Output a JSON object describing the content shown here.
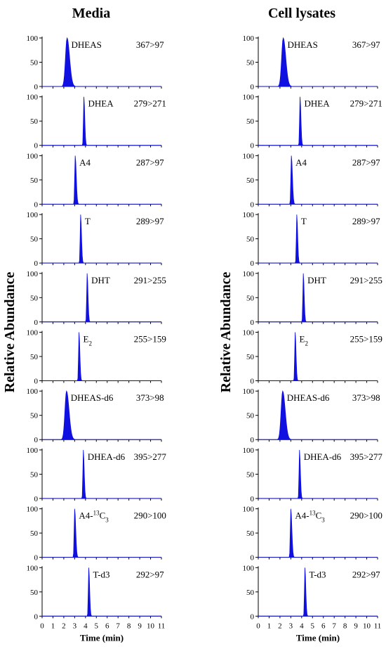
{
  "chart_data": {
    "type": "area",
    "ylabel": "Relative Abundance",
    "xlabel": "Time (min)",
    "xlim": [
      0,
      11
    ],
    "ylim": [
      0,
      100
    ],
    "xticks": [
      "0",
      "1",
      "2",
      "3",
      "4",
      "5",
      "6",
      "7",
      "8",
      "9",
      "10",
      "11"
    ],
    "yticks": [
      "0",
      "50",
      "100"
    ],
    "peak_color": "#1010e0",
    "panels": [
      {
        "title": "Media",
        "traces": [
          {
            "name": "DHEAS",
            "sub": "",
            "sup": "",
            "rest": "",
            "transition": "367>97",
            "rt": 2.3,
            "width": 0.32,
            "height": 100,
            "tail": 0.35
          },
          {
            "name": "DHEA",
            "sub": "",
            "sup": "",
            "rest": "",
            "transition": "279>271",
            "rt": 3.85,
            "width": 0.09,
            "height": 100,
            "tail": 0.15
          },
          {
            "name": "A4",
            "sub": "",
            "sup": "",
            "rest": "",
            "transition": "287>97",
            "rt": 3.05,
            "width": 0.1,
            "height": 100,
            "tail": 0.2
          },
          {
            "name": "T",
            "sub": "",
            "sup": "",
            "rest": "",
            "transition": "289>97",
            "rt": 3.55,
            "width": 0.09,
            "height": 100,
            "tail": 0.15
          },
          {
            "name": "DHT",
            "sub": "",
            "sup": "",
            "rest": "",
            "transition": "291>255",
            "rt": 4.15,
            "width": 0.09,
            "height": 100,
            "tail": 0.15
          },
          {
            "name": "E",
            "sub": "2",
            "sup": "",
            "rest": "",
            "transition": "255>159",
            "rt": 3.4,
            "width": 0.09,
            "height": 100,
            "tail": 0.15
          },
          {
            "name": "DHEAS-d6",
            "sub": "",
            "sup": "",
            "rest": "",
            "transition": "373>98",
            "rt": 2.25,
            "width": 0.32,
            "height": 100,
            "tail": 0.35
          },
          {
            "name": "DHEA-d6",
            "sub": "",
            "sup": "",
            "rest": "",
            "transition": "395>277",
            "rt": 3.8,
            "width": 0.09,
            "height": 100,
            "tail": 0.15
          },
          {
            "name": "A4-",
            "sub": "3",
            "sup": "13",
            "rest": "C",
            "transition": "290>100",
            "rt": 3.0,
            "width": 0.1,
            "height": 100,
            "tail": 0.2
          },
          {
            "name": "T-d3",
            "sub": "",
            "sup": "",
            "rest": "",
            "transition": "292>97",
            "rt": 4.3,
            "width": 0.09,
            "height": 100,
            "tail": 0.15
          }
        ]
      },
      {
        "title": "Cell lysates",
        "traces": [
          {
            "name": "DHEAS",
            "sub": "",
            "sup": "",
            "rest": "",
            "transition": "367>97",
            "rt": 2.3,
            "width": 0.32,
            "height": 100,
            "tail": 0.35
          },
          {
            "name": "DHEA",
            "sub": "",
            "sup": "",
            "rest": "",
            "transition": "279>271",
            "rt": 3.85,
            "width": 0.09,
            "height": 100,
            "tail": 0.15
          },
          {
            "name": "A4",
            "sub": "",
            "sup": "",
            "rest": "",
            "transition": "287>97",
            "rt": 3.05,
            "width": 0.1,
            "height": 100,
            "tail": 0.2
          },
          {
            "name": "T",
            "sub": "",
            "sup": "",
            "rest": "",
            "transition": "289>97",
            "rt": 3.55,
            "width": 0.09,
            "height": 100,
            "tail": 0.15
          },
          {
            "name": "DHT",
            "sub": "",
            "sup": "",
            "rest": "",
            "transition": "291>255",
            "rt": 4.15,
            "width": 0.09,
            "height": 100,
            "tail": 0.15
          },
          {
            "name": "E",
            "sub": "2",
            "sup": "",
            "rest": "",
            "transition": "255>159",
            "rt": 3.4,
            "width": 0.09,
            "height": 100,
            "tail": 0.15
          },
          {
            "name": "DHEAS-d6",
            "sub": "",
            "sup": "",
            "rest": "",
            "transition": "373>98",
            "rt": 2.25,
            "width": 0.32,
            "height": 100,
            "tail": 0.35
          },
          {
            "name": "DHEA-d6",
            "sub": "",
            "sup": "",
            "rest": "",
            "transition": "395>277",
            "rt": 3.8,
            "width": 0.09,
            "height": 100,
            "tail": 0.15
          },
          {
            "name": "A4-",
            "sub": "3",
            "sup": "13",
            "rest": "C",
            "transition": "290>100",
            "rt": 3.0,
            "width": 0.1,
            "height": 100,
            "tail": 0.2
          },
          {
            "name": "T-d3",
            "sub": "",
            "sup": "",
            "rest": "",
            "transition": "292>97",
            "rt": 4.3,
            "width": 0.09,
            "height": 100,
            "tail": 0.15
          }
        ]
      }
    ]
  }
}
